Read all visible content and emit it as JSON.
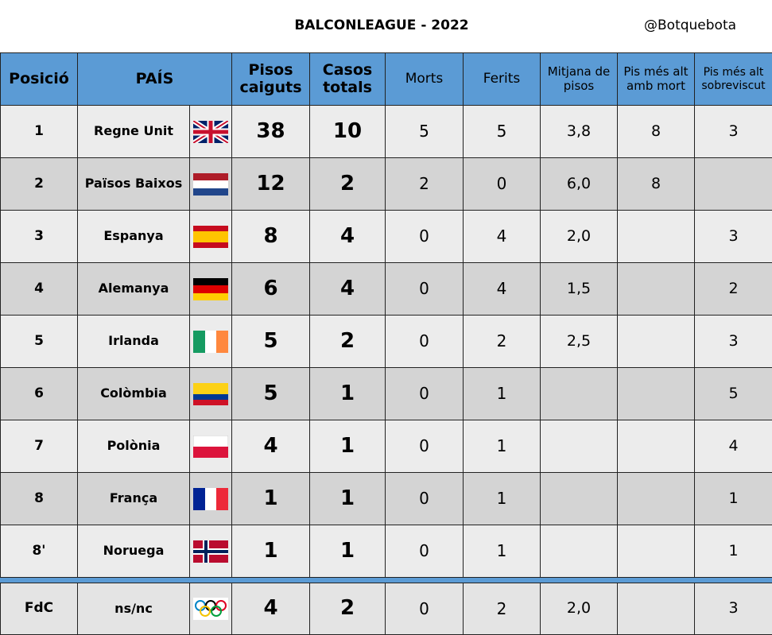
{
  "header": {
    "title": "BALCONLEAGUE - 2022",
    "handle": "@Botquebota"
  },
  "table": {
    "columns": [
      "Posició",
      "PAÍS",
      "Pisos caiguts",
      "Casos totals",
      "Morts",
      "Ferits",
      "Mitjana de pisos",
      "Pis més alt amb mort",
      "Pis més alt sobreviscut"
    ],
    "rows": [
      [
        "1",
        "Regne Unit",
        38,
        10,
        5,
        5,
        "3,8",
        8,
        3
      ],
      [
        "2",
        "Països Baixos",
        12,
        2,
        2,
        0,
        "6,0",
        8,
        null
      ],
      [
        "3",
        "Espanya",
        8,
        4,
        0,
        4,
        "2,0",
        null,
        3
      ],
      [
        "4",
        "Alemanya",
        6,
        4,
        0,
        4,
        "1,5",
        null,
        2
      ],
      [
        "5",
        "Irlanda",
        5,
        2,
        0,
        2,
        "2,5",
        null,
        3
      ],
      [
        "6",
        "Colòmbia",
        5,
        1,
        0,
        1,
        null,
        null,
        5
      ],
      [
        "7",
        "Polònia",
        4,
        1,
        0,
        1,
        null,
        null,
        4
      ],
      [
        "8",
        "França",
        1,
        1,
        0,
        1,
        null,
        null,
        1
      ],
      [
        "8'",
        "Noruega",
        1,
        1,
        0,
        1,
        null,
        null,
        1
      ]
    ],
    "footer_row": [
      "FdC",
      "ns/nc",
      4,
      2,
      0,
      2,
      "2,0",
      null,
      3
    ]
  }
}
